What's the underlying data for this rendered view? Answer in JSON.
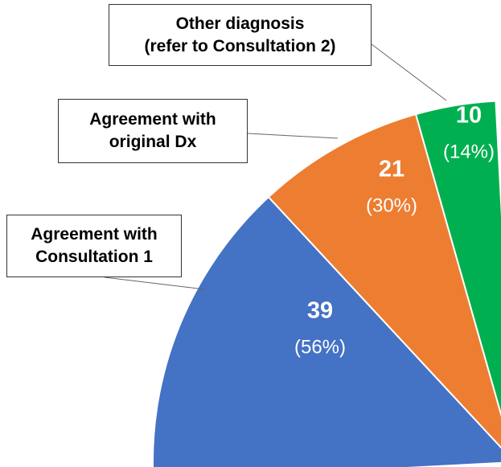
{
  "chart_data": {
    "type": "pie",
    "categories": [
      "Agreement with\nConsultation 1",
      "Agreement with\noriginal Dx",
      "Other diagnosis\n(refer to Consultation 2)"
    ],
    "values": [
      39,
      21,
      10
    ],
    "percent_labels": [
      "(56%)",
      "(30%)",
      "(14%)"
    ],
    "colors": [
      "#4472c4",
      "#ed7d31",
      "#00b050"
    ]
  }
}
